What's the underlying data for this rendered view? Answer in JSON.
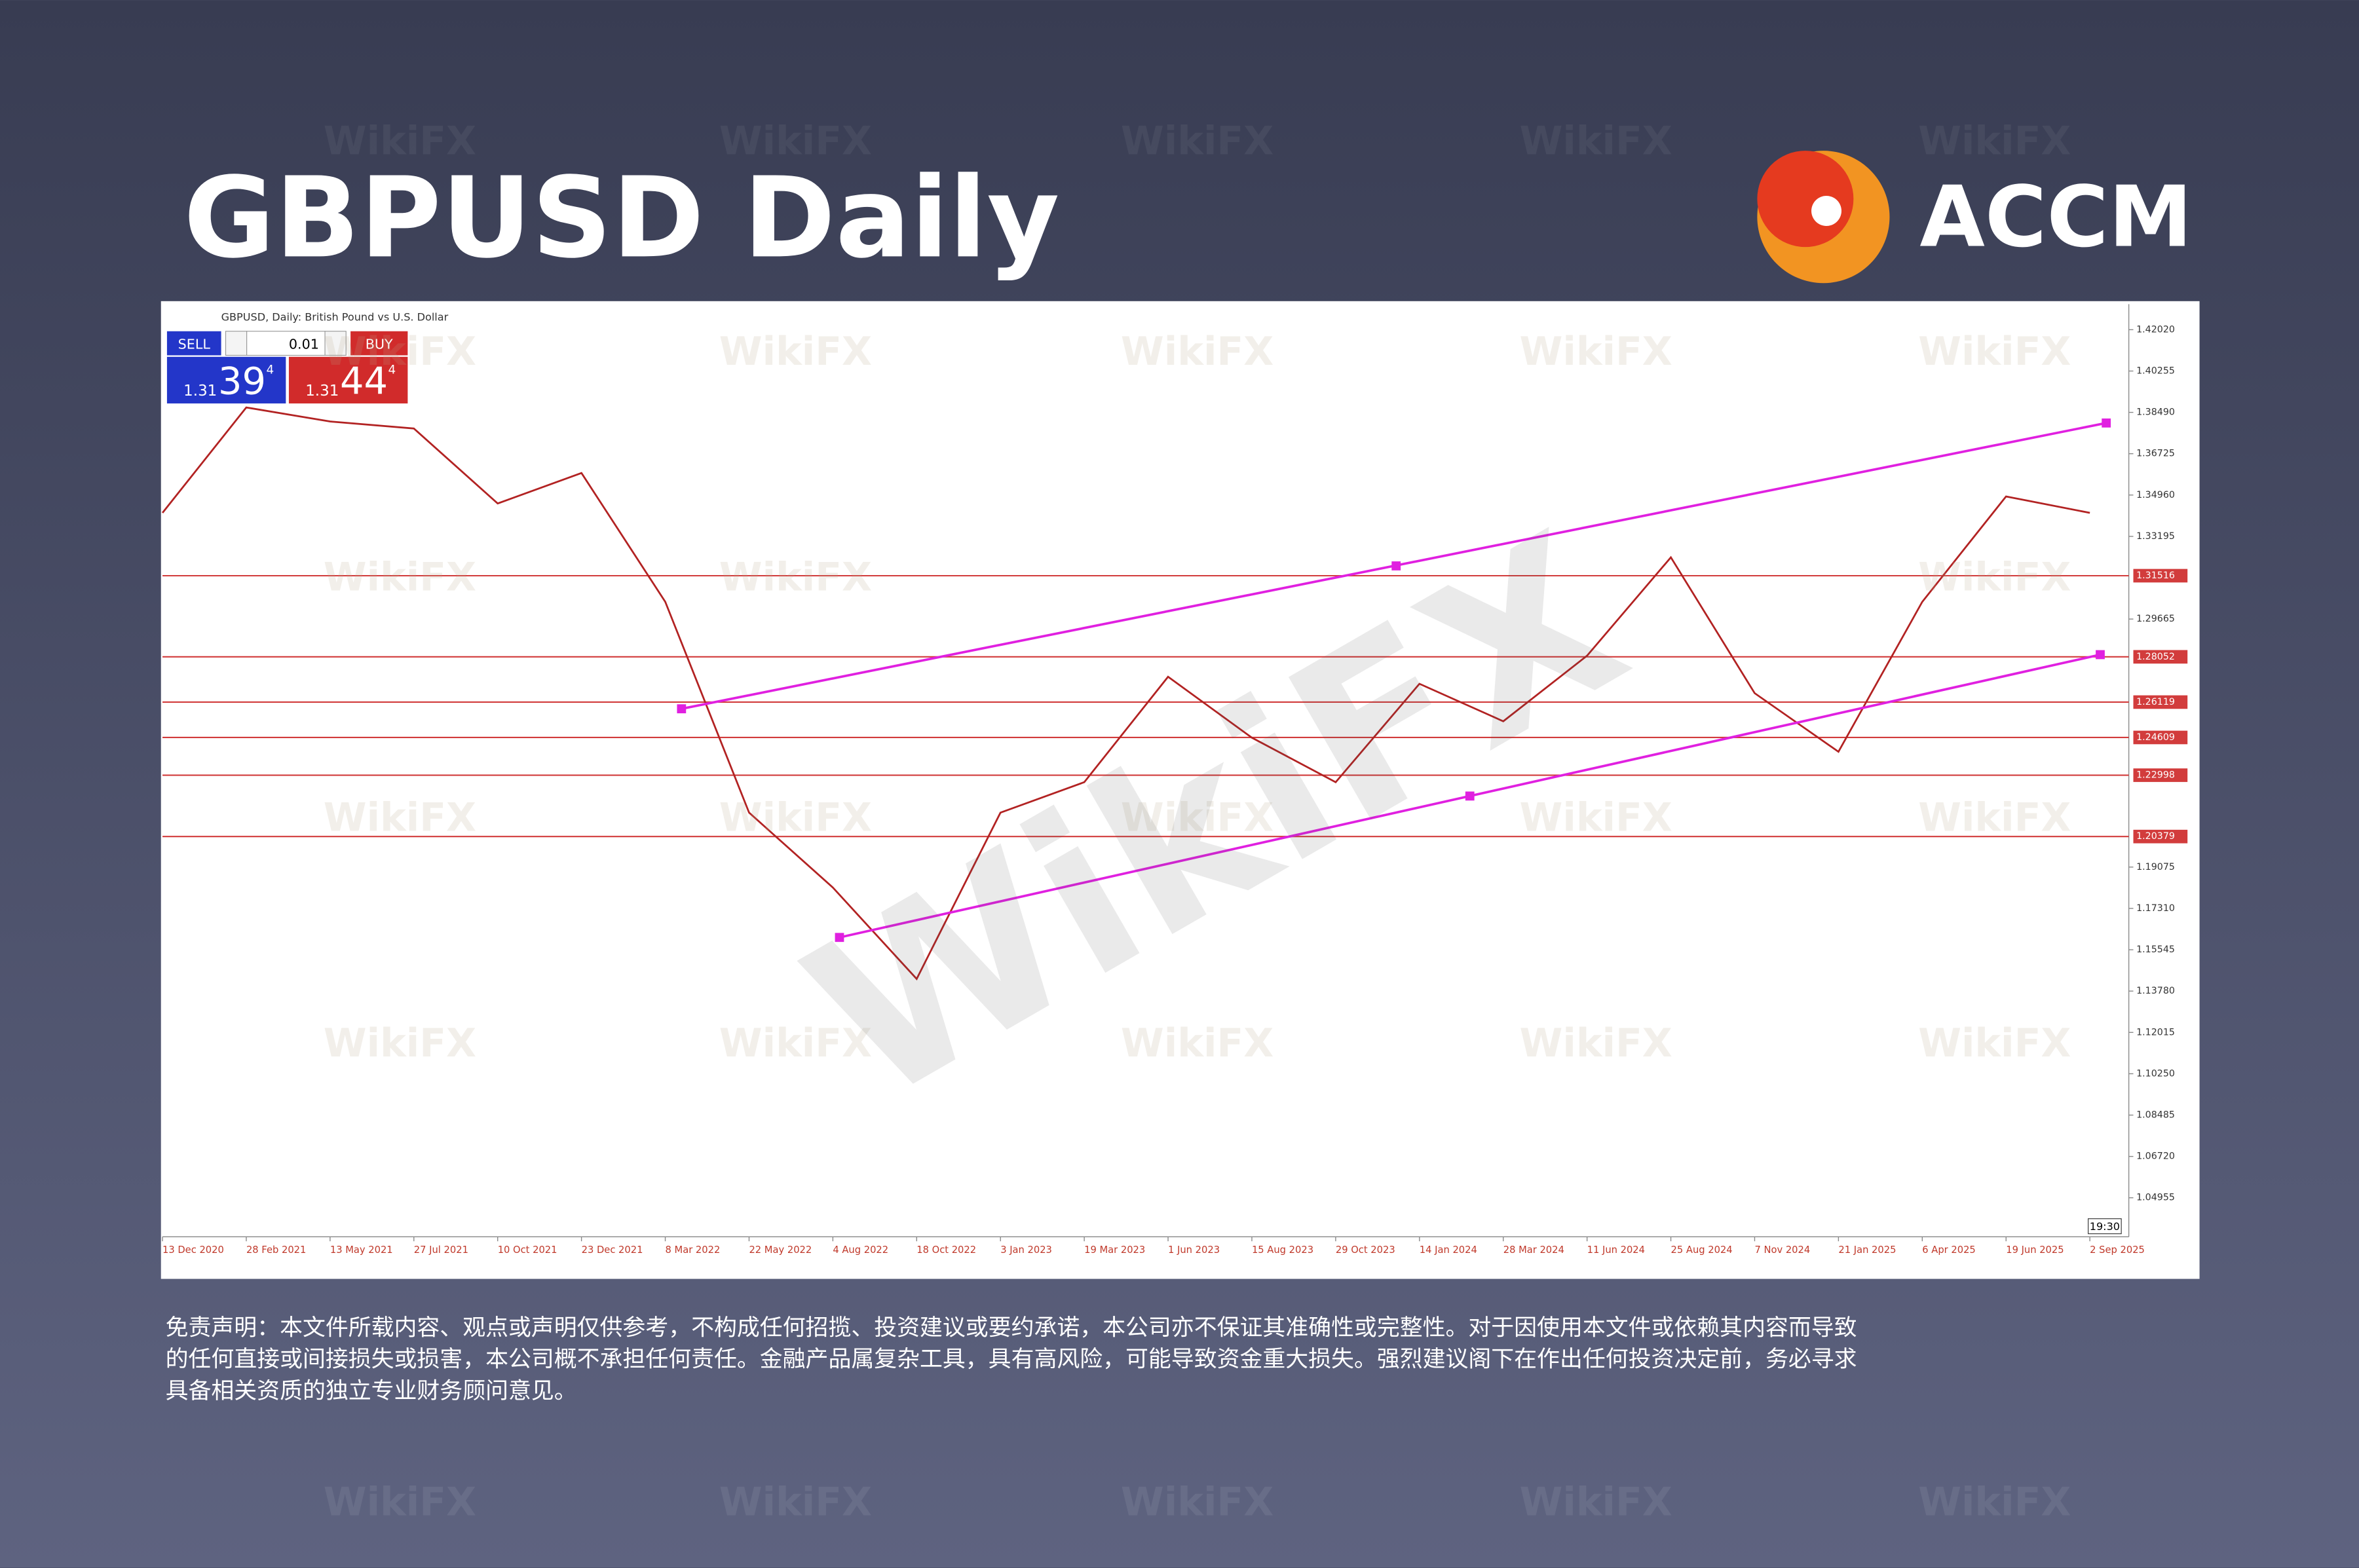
{
  "header": {
    "title": "GBPUSD Daily"
  },
  "brand": {
    "name": "ACCM"
  },
  "watermark": "WikiFX",
  "trade_panel": {
    "sell_label": "SELL",
    "buy_label": "BUY",
    "lot": "0.01",
    "bid": {
      "prefix": "1.31",
      "big": "39",
      "small": "4"
    },
    "ask": {
      "prefix": "1.31",
      "big": "44",
      "small": "4"
    }
  },
  "chart_data": {
    "type": "line",
    "title": "GBPUSD, Daily: British Pound vs U.S. Dollar",
    "time_label": "19:30",
    "categories": [
      "13 Dec 2020",
      "28 Feb 2021",
      "13 May 2021",
      "27 Jul 2021",
      "10 Oct 2021",
      "23 Dec 2021",
      "8 Mar 2022",
      "22 May 2022",
      "4 Aug 2022",
      "18 Oct 2022",
      "3 Jan 2023",
      "19 Mar 2023",
      "1 Jun 2023",
      "15 Aug 2023",
      "29 Oct 2023",
      "14 Jan 2024",
      "28 Mar 2024",
      "11 Jun 2024",
      "25 Aug 2024",
      "7 Nov 2024",
      "21 Jan 2025",
      "6 Apr 2025",
      "19 Jun 2025",
      "2 Sep 2025"
    ],
    "series": [
      {
        "name": "GBPUSD",
        "color": "#b22222",
        "values": [
          1.342,
          1.387,
          1.381,
          1.378,
          1.346,
          1.359,
          1.304,
          1.214,
          1.182,
          1.143,
          1.214,
          1.227,
          1.272,
          1.246,
          1.227,
          1.269,
          1.253,
          1.281,
          1.323,
          1.265,
          1.24,
          1.304,
          1.349,
          1.342
        ]
      }
    ],
    "ylim": [
      1.0329,
      1.4311
    ],
    "yticks": [
      {
        "value": 1.4202,
        "label": "1.42020"
      },
      {
        "value": 1.40255,
        "label": "1.40255"
      },
      {
        "value": 1.3849,
        "label": "1.38490"
      },
      {
        "value": 1.36725,
        "label": "1.36725"
      },
      {
        "value": 1.3496,
        "label": "1.34960"
      },
      {
        "value": 1.33195,
        "label": "1.33195"
      },
      {
        "value": 1.29665,
        "label": "1.29665"
      },
      {
        "value": 1.19075,
        "label": "1.19075"
      },
      {
        "value": 1.1731,
        "label": "1.17310"
      },
      {
        "value": 1.15545,
        "label": "1.15545"
      },
      {
        "value": 1.1378,
        "label": "1.13780"
      },
      {
        "value": 1.12015,
        "label": "1.12015"
      },
      {
        "value": 1.1025,
        "label": "1.10250"
      },
      {
        "value": 1.08485,
        "label": "1.08485"
      },
      {
        "value": 1.0672,
        "label": "1.06720"
      },
      {
        "value": 1.04955,
        "label": "1.04955"
      }
    ],
    "levels": [
      {
        "value": 1.31516,
        "label": "1.31516"
      },
      {
        "value": 1.28052,
        "label": "1.28052"
      },
      {
        "value": 1.26119,
        "label": "1.26119"
      },
      {
        "value": 1.24609,
        "label": "1.24609"
      },
      {
        "value": 1.22998,
        "label": "1.22998"
      },
      {
        "value": 1.20379,
        "label": "1.20379"
      }
    ],
    "level_color": "#d23c3c",
    "grid": false
  },
  "disclaimer": [
    "免责声明：本文件所载内容、观点或声明仅供参考，不构成任何招揽、投资建议或要约承诺，本公司亦不保证其准确性或完整性。对于因使用本文件或依赖其内容而导致",
    "的任何直接或间接损失或损害，本公司概不承担任何责任。金融产品属复杂工具，具有高风险，可能导致资金重大损失。强烈建议阁下在作出任何投资决定前，务必寻求",
    "具备相关资质的独立专业财务顾问意见。"
  ]
}
